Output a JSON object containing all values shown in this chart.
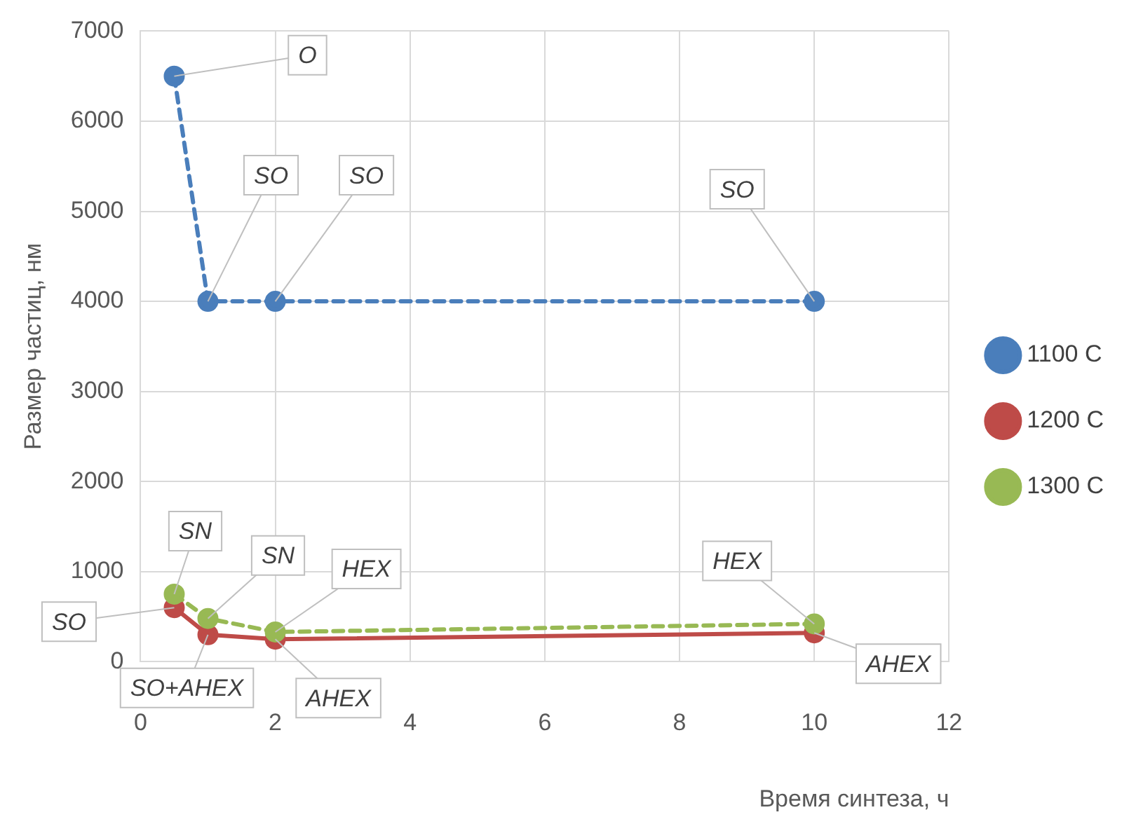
{
  "chart_data": {
    "type": "line",
    "xlabel": "Время синтеза, ч",
    "ylabel": "Размер частиц, нм",
    "xlim": [
      0,
      12
    ],
    "xticks": [
      0,
      2,
      4,
      6,
      8,
      10,
      12
    ],
    "ylim": [
      0,
      7000
    ],
    "yticks": [
      0,
      1000,
      2000,
      3000,
      4000,
      5000,
      6000,
      7000
    ],
    "grid": true,
    "legend": "right",
    "marker": "circle",
    "series": [
      {
        "name": "1100 C",
        "color": "#4a7ebb",
        "line_style": "dashed",
        "x": [
          0.5,
          1,
          2,
          10
        ],
        "values": [
          6500,
          4000,
          4000,
          4000
        ]
      },
      {
        "name": "1200 C",
        "color": "#be4b48",
        "line_style": "solid",
        "x": [
          0.5,
          1,
          2,
          10
        ],
        "values": [
          600,
          300,
          250,
          320
        ]
      },
      {
        "name": "1300 C",
        "color": "#98b954",
        "line_style": "dashed",
        "x": [
          0.5,
          1,
          2,
          10
        ],
        "values": [
          750,
          480,
          330,
          420
        ]
      }
    ],
    "annotations": [
      {
        "text": "O",
        "x": 0.5,
        "y": 6500
      },
      {
        "text": "SO",
        "x": 1,
        "y": 4000
      },
      {
        "text": "SO",
        "x": 2,
        "y": 4000
      },
      {
        "text": "SO",
        "x": 10,
        "y": 4000
      },
      {
        "text": "SO",
        "x": 0.5,
        "y": 600
      },
      {
        "text": "SO+AHEX",
        "x": 1,
        "y": 300
      },
      {
        "text": "AHEX",
        "x": 2,
        "y": 250
      },
      {
        "text": "AHEX",
        "x": 10,
        "y": 320
      },
      {
        "text": "SN",
        "x": 0.5,
        "y": 750
      },
      {
        "text": "SN",
        "x": 1,
        "y": 480
      },
      {
        "text": "HEX",
        "x": 2,
        "y": 330
      },
      {
        "text": "HEX",
        "x": 10,
        "y": 420
      }
    ]
  }
}
